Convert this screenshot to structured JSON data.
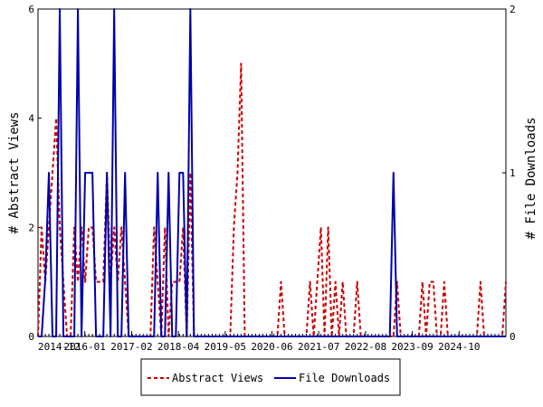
{
  "chart_data": {
    "type": "line",
    "x_ticks": [
      "2014-12",
      "2016-01",
      "2017-02",
      "2018-04",
      "2019-05",
      "2020-06",
      "2021-07",
      "2022-08",
      "2023-09",
      "2024-10"
    ],
    "ylabel_left": "# Abstract Views",
    "ylabel_right": "# File Downloads",
    "ylim_left": [
      0,
      6
    ],
    "ylim_right": [
      0,
      2
    ],
    "y_ticks_left": [
      "0",
      "2",
      "4",
      "6"
    ],
    "y_ticks_right": [
      "0",
      "1",
      "2"
    ],
    "legend": {
      "position": "bottom-center",
      "items": [
        "Abstract Views",
        "File Downloads"
      ]
    },
    "series": [
      {
        "name": "Abstract Views",
        "axis": "left",
        "color": "#cc0000",
        "style": "dashed",
        "x": [
          0,
          1,
          2,
          3,
          4,
          5,
          6,
          7,
          8,
          9,
          10,
          11,
          12,
          13,
          14,
          15,
          16,
          17,
          18,
          19,
          20,
          21,
          22,
          23,
          24,
          25,
          26,
          27,
          28,
          29,
          30,
          31,
          32,
          33,
          34,
          35,
          36,
          37,
          38,
          39,
          40,
          41,
          42,
          43,
          44,
          45,
          46,
          47,
          48,
          49,
          50,
          51,
          52,
          53,
          54,
          55,
          56,
          57,
          58,
          59,
          60,
          61,
          62,
          63,
          64,
          65,
          66,
          67,
          68,
          69,
          70,
          71,
          72,
          73,
          74,
          75,
          76,
          77,
          78,
          79,
          80,
          81,
          82,
          83,
          84,
          85,
          86,
          87,
          88,
          89,
          90,
          91,
          92,
          93,
          94,
          95,
          96,
          97,
          98,
          99,
          100,
          101,
          102,
          103,
          104,
          105,
          106,
          107,
          108,
          109,
          110,
          111,
          112,
          113,
          114,
          115,
          116,
          117,
          118,
          119,
          120,
          121,
          122,
          123,
          124,
          125,
          126,
          127,
          128,
          129
        ],
        "values": [
          0,
          2,
          1,
          2,
          3,
          4,
          2,
          1,
          0,
          0,
          2,
          1,
          2,
          1,
          2,
          2,
          1,
          1,
          1,
          3,
          1,
          2,
          1,
          2,
          1,
          0,
          0,
          0,
          0,
          0,
          0,
          0,
          2,
          1,
          0,
          2,
          0,
          1,
          1,
          1,
          2,
          0,
          3,
          0,
          0,
          0,
          0,
          0,
          0,
          0,
          0,
          0,
          0,
          0,
          2,
          3,
          5,
          0,
          0,
          0,
          0,
          0,
          0,
          0,
          0,
          0,
          0,
          1,
          0,
          0,
          0,
          0,
          0,
          0,
          0,
          1,
          0,
          1,
          2,
          0,
          2,
          0,
          1,
          0,
          1,
          0,
          0,
          0,
          1,
          0,
          0,
          0,
          0,
          0,
          0,
          0,
          0,
          0,
          0,
          1,
          0,
          0,
          0,
          0,
          0,
          0,
          1,
          0,
          1,
          1,
          0,
          0,
          1,
          0,
          0,
          0,
          0,
          0,
          0,
          0,
          0,
          0,
          1,
          0,
          0,
          0,
          0,
          0,
          0,
          1
        ]
      },
      {
        "name": "File Downloads",
        "axis": "right",
        "color": "#0000aa",
        "style": "solid",
        "x": [
          0,
          1,
          2,
          3,
          4,
          5,
          6,
          7,
          8,
          9,
          10,
          11,
          12,
          13,
          14,
          15,
          16,
          17,
          18,
          19,
          20,
          21,
          22,
          23,
          24,
          25,
          26,
          27,
          28,
          29,
          30,
          31,
          32,
          33,
          34,
          35,
          36,
          37,
          38,
          39,
          40,
          41,
          42,
          43,
          44,
          45,
          46,
          47,
          48,
          49,
          50,
          51,
          52,
          53,
          54,
          55,
          56,
          57,
          58,
          59,
          60,
          61,
          62,
          63,
          64,
          65,
          66,
          67,
          68,
          69,
          70,
          71,
          72,
          73,
          74,
          75,
          76,
          77,
          78,
          79,
          80,
          81,
          82,
          83,
          84,
          85,
          86,
          87,
          88,
          89,
          90,
          91,
          92,
          93,
          94,
          95,
          96,
          97,
          98,
          99,
          100,
          101,
          102,
          103,
          104,
          105,
          106,
          107,
          108,
          109,
          110,
          111,
          112,
          113,
          114,
          115,
          116,
          117,
          118,
          119,
          120,
          121,
          122,
          123,
          124,
          125,
          126,
          127,
          128,
          129
        ],
        "values": [
          0,
          0,
          0.35,
          1,
          0,
          0,
          2,
          0,
          0,
          0,
          0,
          2,
          0,
          1,
          1,
          1,
          0,
          0,
          0,
          1,
          0,
          2,
          0,
          0,
          1,
          0,
          0,
          0,
          0,
          0,
          0,
          0,
          0,
          1,
          0,
          0,
          1,
          0,
          0,
          1,
          1,
          0,
          2,
          0,
          0,
          0,
          0,
          0,
          0,
          0,
          0,
          0,
          0,
          0,
          0,
          0,
          0,
          0,
          0,
          0,
          0,
          0,
          0,
          0,
          0,
          0,
          0,
          0,
          0,
          0,
          0,
          0,
          0,
          0,
          0,
          0,
          0,
          0,
          0,
          0,
          0,
          0,
          0,
          0,
          0,
          0,
          0,
          0,
          0,
          0,
          0,
          0,
          0,
          0,
          0,
          0,
          0,
          0,
          1,
          0,
          0,
          0,
          0,
          0,
          0,
          0,
          0,
          0,
          0,
          0,
          0,
          0,
          0,
          0,
          0,
          0,
          0,
          0,
          0,
          0,
          0,
          0,
          0,
          0,
          0,
          0,
          0,
          0,
          0,
          0
        ]
      }
    ]
  }
}
